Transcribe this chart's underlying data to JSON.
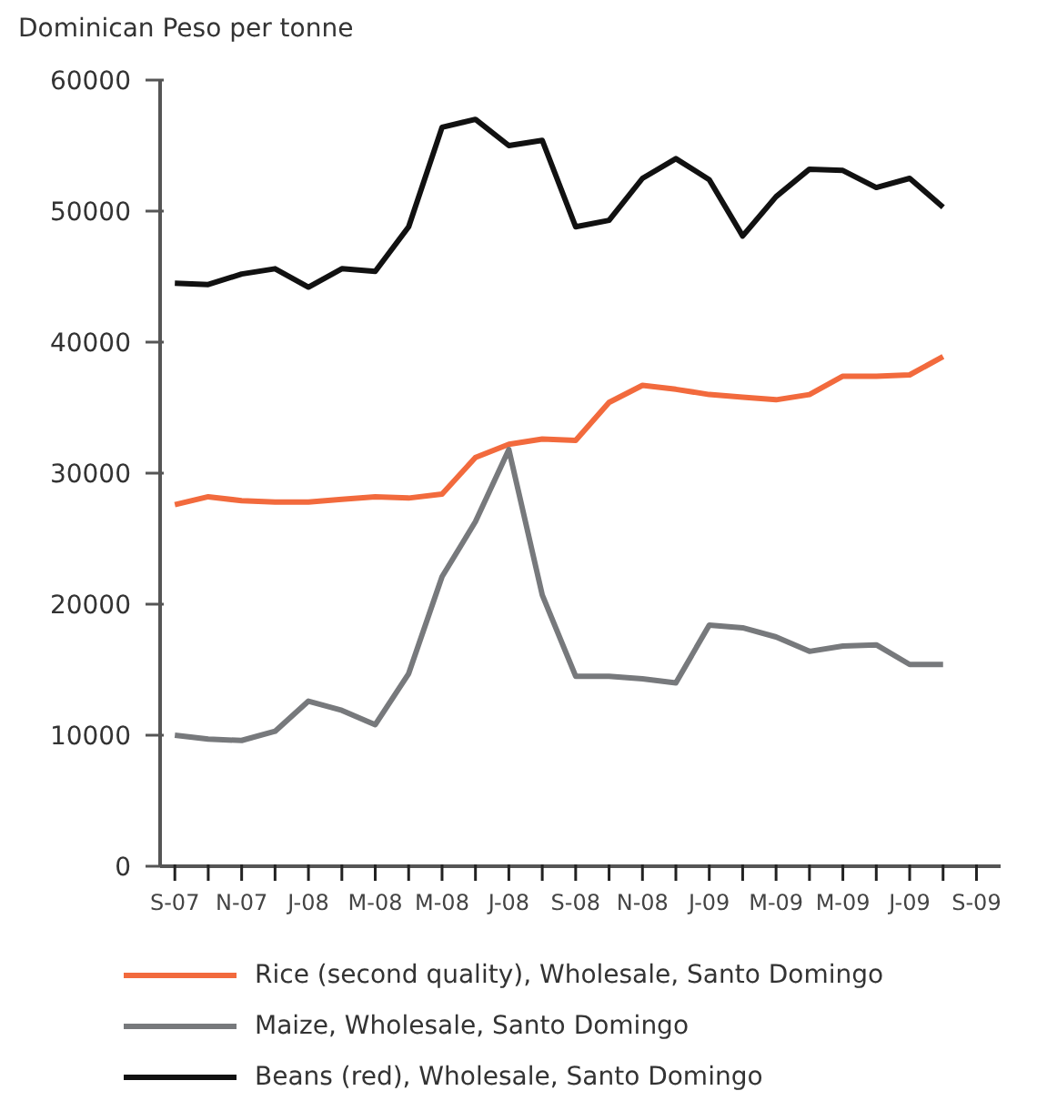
{
  "chart_data": {
    "type": "line",
    "ylabel": "Dominican Peso per tonne",
    "x": [
      "2007-09",
      "2007-10",
      "2007-11",
      "2007-12",
      "2008-01",
      "2008-02",
      "2008-03",
      "2008-04",
      "2008-05",
      "2008-06",
      "2008-07",
      "2008-08",
      "2008-09",
      "2008-10",
      "2008-11",
      "2008-12",
      "2009-01",
      "2009-02",
      "2009-03",
      "2009-04",
      "2009-05",
      "2009-06",
      "2009-07",
      "2009-08"
    ],
    "series": [
      {
        "name": "Rice (second quality), Wholesale, Santo Domingo",
        "color": "#f26a3d",
        "values": [
          27600,
          28200,
          27900,
          27800,
          27800,
          28000,
          28200,
          28100,
          28400,
          31200,
          32200,
          32600,
          32500,
          35400,
          36700,
          36400,
          36000,
          35800,
          35600,
          36000,
          37400,
          37400,
          37500,
          38900
        ]
      },
      {
        "name": "Maize, Wholesale, Santo Domingo",
        "color": "#77797c",
        "values": [
          10000,
          9700,
          9600,
          10300,
          12600,
          11900,
          10800,
          14700,
          22100,
          26300,
          31800,
          20700,
          14500,
          14500,
          14300,
          14000,
          18400,
          18200,
          17500,
          16400,
          16800,
          16900,
          15400,
          15400
        ]
      },
      {
        "name": "Beans (red), Wholesale, Santo Domingo",
        "color": "#111111",
        "values": [
          44500,
          44400,
          45200,
          45600,
          44200,
          45600,
          45400,
          48800,
          56400,
          57000,
          55000,
          55400,
          48800,
          49300,
          52500,
          54000,
          52400,
          48100,
          51100,
          53200,
          53100,
          51800,
          52500,
          50300
        ]
      }
    ],
    "xlim": [
      "2007-08-18",
      "2009-09-23"
    ],
    "xticks": [
      {
        "value": "2007-09",
        "label": "S-07"
      },
      {
        "value": "2007-10",
        "label": null
      },
      {
        "value": "2007-11",
        "label": "N-07"
      },
      {
        "value": "2007-12",
        "label": null
      },
      {
        "value": "2008-01",
        "label": "J-08"
      },
      {
        "value": "2008-02",
        "label": null
      },
      {
        "value": "2008-03",
        "label": "M-08"
      },
      {
        "value": "2008-04",
        "label": null
      },
      {
        "value": "2008-05",
        "label": "M-08"
      },
      {
        "value": "2008-06",
        "label": null
      },
      {
        "value": "2008-07",
        "label": "J-08"
      },
      {
        "value": "2008-08",
        "label": null
      },
      {
        "value": "2008-09",
        "label": "S-08"
      },
      {
        "value": "2008-10",
        "label": null
      },
      {
        "value": "2008-11",
        "label": "N-08"
      },
      {
        "value": "2008-12",
        "label": null
      },
      {
        "value": "2009-01",
        "label": "J-09"
      },
      {
        "value": "2009-02",
        "label": null
      },
      {
        "value": "2009-03",
        "label": "M-09"
      },
      {
        "value": "2009-04",
        "label": null
      },
      {
        "value": "2009-05",
        "label": "M-09"
      },
      {
        "value": "2009-06",
        "label": null
      },
      {
        "value": "2009-07",
        "label": "J-09"
      },
      {
        "value": "2009-08",
        "label": null
      },
      {
        "value": "2009-09",
        "label": "S-09"
      }
    ],
    "ylim": [
      0,
      60000
    ],
    "yticks": [
      0,
      10000,
      20000,
      30000,
      40000,
      50000,
      60000
    ],
    "grid": false,
    "legend": "bottom",
    "marker": "none",
    "line_style": "solid"
  }
}
